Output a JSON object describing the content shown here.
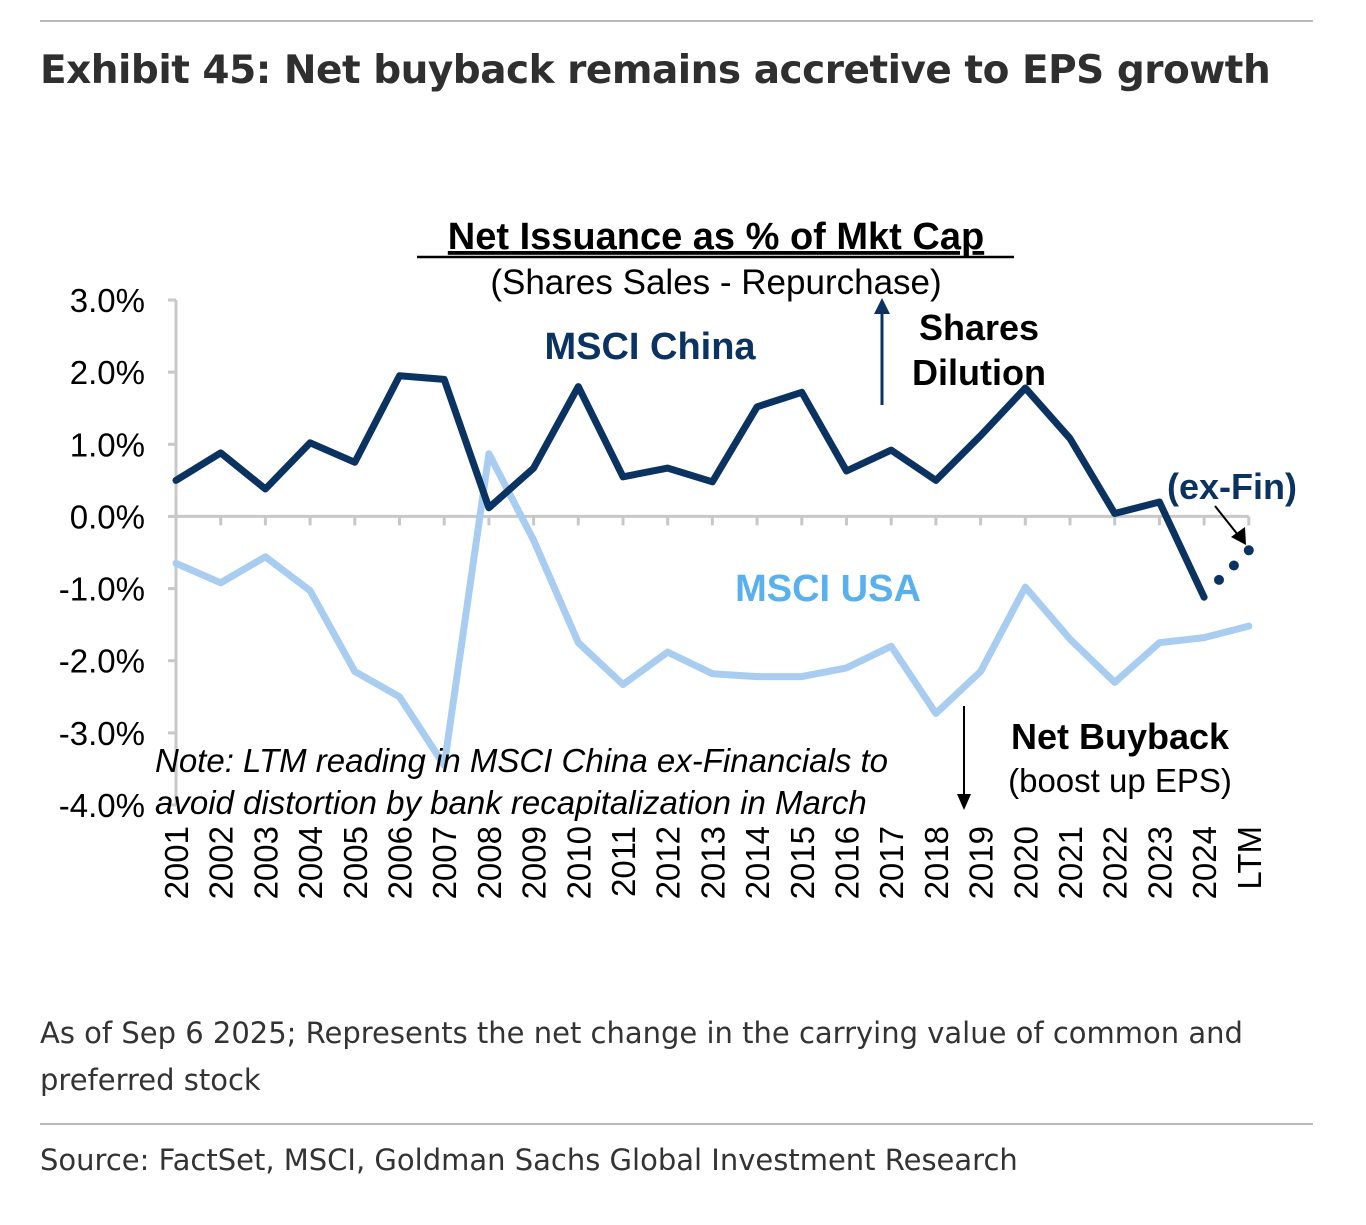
{
  "header": {
    "title": "Exhibit 45: Net buyback remains accretive to EPS growth"
  },
  "footer": {
    "note": "As of Sep 6 2025; Represents the net change in the carrying value of common and preferred stock",
    "source": "Source: FactSet, MSCI, Goldman Sachs Global Investment Research"
  },
  "colors": {
    "china": "#0b3361",
    "usa": "#a8cdf0",
    "usa_label": "#58b0ec",
    "axis": "#c8c8c8",
    "text": "#000000"
  },
  "chart_data": {
    "type": "line",
    "title": "Net Issuance  as % of Mkt Cap",
    "subtitle": "(Shares Sales - Repurchase)",
    "xlabel": "",
    "ylabel": "",
    "ylim": [
      -4,
      3
    ],
    "yticks": [
      3,
      2,
      1,
      0,
      -1,
      -2,
      -3,
      -4
    ],
    "ytick_labels": [
      "3.0%",
      "2.0%",
      "1.0%",
      "0.0%",
      "-1.0%",
      "-2.0%",
      "-3.0%",
      "-4.0%"
    ],
    "categories": [
      "2001",
      "2002",
      "2003",
      "2004",
      "2005",
      "2006",
      "2007",
      "2008",
      "2009",
      "2010",
      "2011",
      "2012",
      "2013",
      "2014",
      "2015",
      "2016",
      "2017",
      "2018",
      "2019",
      "2020",
      "2021",
      "2022",
      "2023",
      "2024",
      "LTM"
    ],
    "series": [
      {
        "name": "MSCI China",
        "values": [
          0.5,
          0.88,
          0.38,
          1.02,
          0.75,
          1.95,
          1.9,
          0.12,
          0.67,
          1.8,
          0.55,
          0.67,
          0.48,
          1.52,
          1.72,
          0.63,
          0.92,
          0.5,
          1.12,
          1.78,
          1.08,
          0.04,
          0.2,
          -1.12,
          null
        ],
        "ltm_ex_fin_values": [
          -1.12,
          -0.88,
          -0.68,
          -0.47
        ]
      },
      {
        "name": "MSCI USA",
        "values": [
          -0.65,
          -0.92,
          -0.56,
          -1.03,
          -2.15,
          -2.5,
          -3.45,
          0.87,
          -0.33,
          -1.75,
          -2.33,
          -1.88,
          -2.18,
          -2.22,
          -2.22,
          -2.1,
          -1.8,
          -2.73,
          -2.15,
          -0.98,
          -1.7,
          -2.3,
          -1.75,
          -1.68,
          -1.52
        ]
      }
    ],
    "annotations": {
      "china_label": "MSCI China",
      "usa_label": "MSCI USA",
      "ex_fin_label": "(ex-Fin)",
      "dilution_line1": "Shares",
      "dilution_line2": "Dilution",
      "buyback_line1": "Net Buyback",
      "buyback_line2": "(boost up EPS)",
      "note_line1": "Note: LTM reading in MSCI China ex-Financials to",
      "note_line2": "avoid distortion by bank recapitalization in March"
    }
  }
}
